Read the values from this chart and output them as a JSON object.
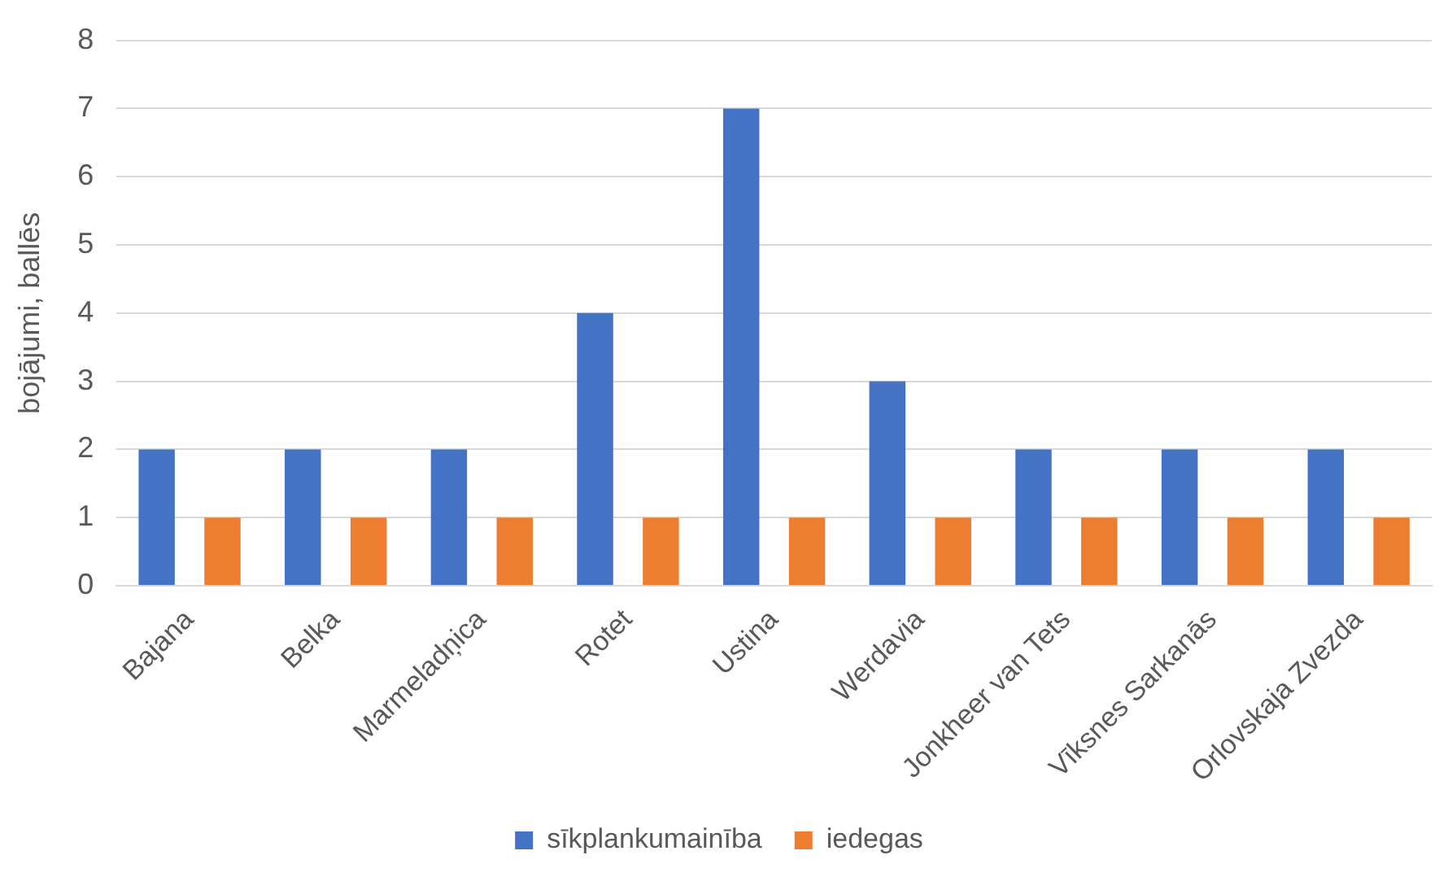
{
  "chart_data": {
    "type": "bar",
    "ylabel": "bojājumi, ballēs",
    "categories": [
      "Bajana",
      "Belka",
      "Marmeladņica",
      "Rotet",
      "Ustina",
      "Werdavia",
      "Jonkheer van Tets",
      "Vīksnes Sarkanās",
      "Orlovskaja Zvezda"
    ],
    "series": [
      {
        "name": "sīkplankumainība",
        "color": "#4472c4",
        "values": [
          2,
          2,
          2,
          4,
          7,
          3,
          2,
          2,
          2
        ]
      },
      {
        "name": "iedegas",
        "color": "#ed7d31",
        "values": [
          1,
          1,
          1,
          1,
          1,
          1,
          1,
          1,
          1
        ]
      }
    ],
    "ylim": [
      0,
      8
    ],
    "yticks": [
      0,
      1,
      2,
      3,
      4,
      5,
      6,
      7,
      8
    ],
    "grid": "y",
    "legend": "bottom"
  }
}
